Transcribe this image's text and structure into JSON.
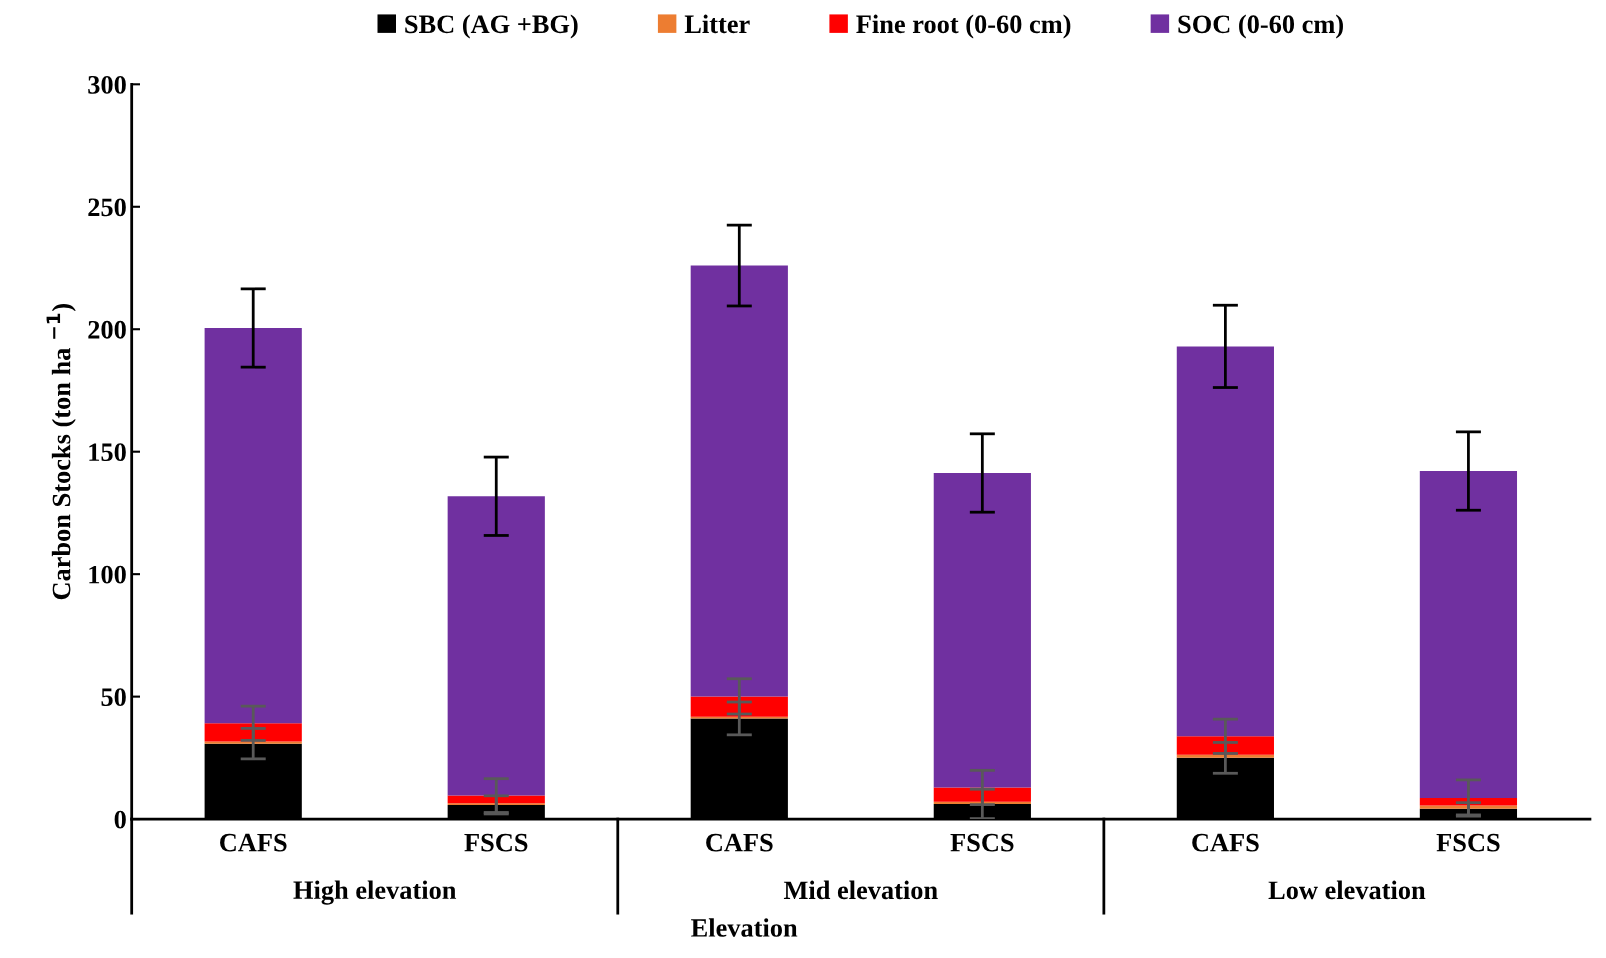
{
  "chart_data": {
    "type": "bar",
    "stacked": true,
    "categories": [
      "CAFS",
      "FSCS",
      "CAFS",
      "FSCS",
      "CAFS",
      "FSCS"
    ],
    "series": [
      {
        "name": "SBC (AG +BG)",
        "color": "#000000",
        "values": [
          30.8,
          5.8,
          41.1,
          6.2,
          25.0,
          4.2
        ],
        "errors": [
          6.2,
          3.7,
          6.7,
          6.0,
          6.3,
          2.5
        ]
      },
      {
        "name": "Litter",
        "color": "#ed7d31",
        "values": [
          0.9,
          0.7,
          0.7,
          0.9,
          1.3,
          1.3
        ]
      },
      {
        "name": "Fine root (0-60 cm)",
        "color": "#ff0000",
        "values": [
          7.4,
          3.1,
          8.3,
          5.8,
          7.5,
          3.1
        ],
        "errors": [
          7.0,
          6.9,
          7.2,
          7.0,
          7.0,
          7.4
        ]
      },
      {
        "name": "SOC (0-60 cm)",
        "color": "#7030a0",
        "values": [
          161.4,
          122.2,
          175.9,
          128.4,
          159.2,
          133.5
        ],
        "errors": [
          16,
          16,
          16.5,
          16,
          16.8,
          16
        ]
      }
    ],
    "annotations": [
      "High elevation",
      "Mid elevation",
      "Low elevation"
    ],
    "xlabel": "Elevation",
    "ylabel": "Carbon Stocks (ton ha $^{−1}$)",
    "ylim": [
      0,
      300
    ],
    "yticks": [
      0,
      50,
      100,
      150,
      200,
      250,
      300
    ],
    "legend": "top",
    "grid": false
  }
}
